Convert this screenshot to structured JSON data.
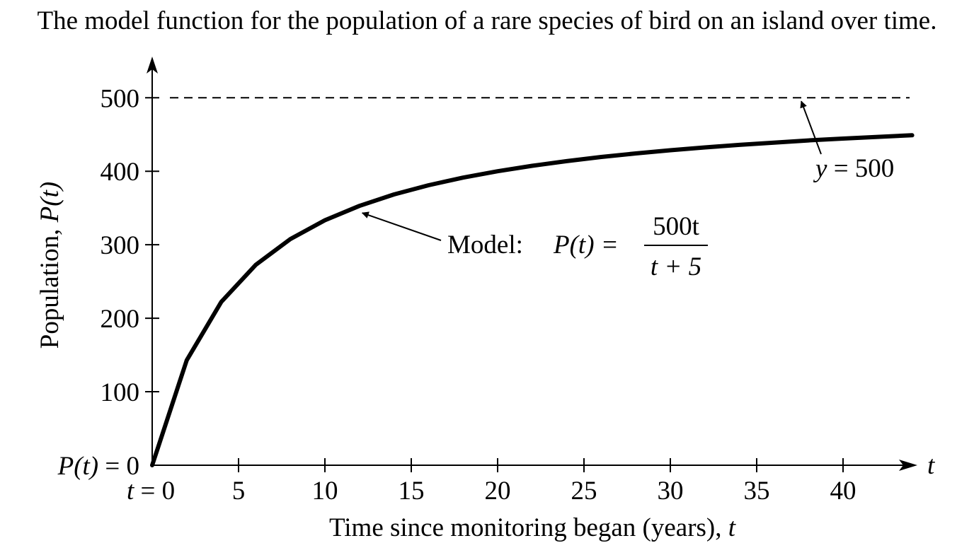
{
  "caption": "The model function for the population of a rare species of bird on an island over time.",
  "chart_data": {
    "type": "line",
    "title": "",
    "xlabel": "Time since monitoring began (years), ",
    "xlabel_var": "t",
    "ylabel": "Population, ",
    "ylabel_var": "P(t)",
    "x_axis_var": "t",
    "xlim": [
      0,
      44
    ],
    "ylim": [
      0,
      530
    ],
    "x_ticks": [
      0,
      5,
      10,
      15,
      20,
      25,
      30,
      35,
      40
    ],
    "x_tick_labels": [
      "t = 0",
      "5",
      "10",
      "15",
      "20",
      "25",
      "30",
      "35",
      "40"
    ],
    "y_ticks": [
      0,
      100,
      200,
      300,
      400,
      500
    ],
    "y_tick_labels": [
      "P(t) = 0",
      "100",
      "200",
      "300",
      "400",
      "500"
    ],
    "grid": false,
    "series": [
      {
        "kind": "curve",
        "x": [
          0,
          2,
          4,
          6,
          8,
          10,
          12,
          14,
          16,
          18,
          20,
          22,
          24,
          26,
          28,
          30,
          32,
          34,
          36,
          38,
          40,
          42,
          44
        ],
        "values": [
          0,
          142.9,
          222.2,
          272.7,
          307.7,
          333.3,
          352.9,
          368.4,
          381.0,
          391.3,
          400.0,
          407.4,
          413.8,
          419.4,
          424.2,
          428.6,
          432.4,
          435.9,
          439.0,
          441.9,
          444.4,
          446.8,
          448.98
        ],
        "color": "#000000"
      },
      {
        "kind": "asymptote",
        "y": 500,
        "style": "dashed",
        "color": "#000000"
      }
    ],
    "annotations": [
      {
        "id": "model",
        "text": "Model:",
        "formula_lhs": "P(t) =",
        "numerator": "500t",
        "denominator": "t + 5",
        "points_to": [
          12,
          352.9
        ]
      },
      {
        "id": "asymptote",
        "text": "y = 500",
        "points_to": [
          37.5,
          500
        ]
      }
    ]
  }
}
